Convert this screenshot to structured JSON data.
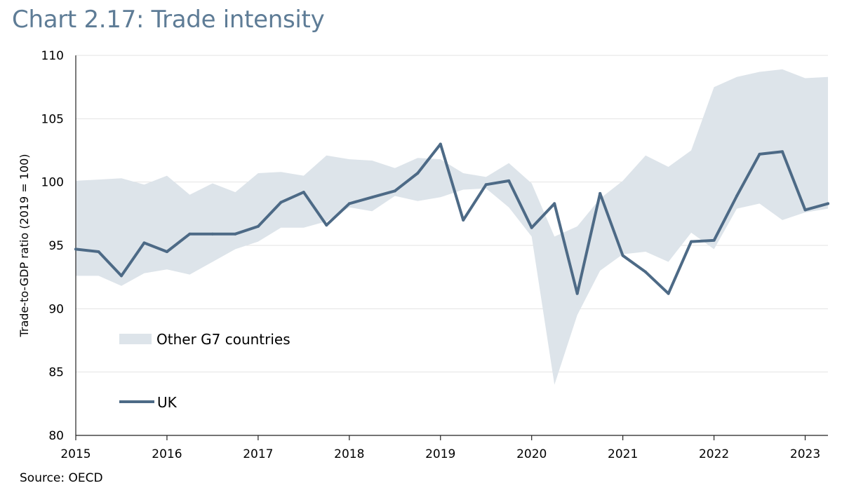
{
  "title": "Chart 2.17: Trade intensity",
  "source": "Source: OECD",
  "colors": {
    "title": "#5e7c96",
    "uk_line": "#4d6a86",
    "band": "#dde4ea",
    "grid": "#e3e3e3",
    "axis": "#222222"
  },
  "chart_data": {
    "type": "line",
    "title": "Chart 2.17: Trade intensity",
    "xlabel": "",
    "ylabel": "Trade-to-GDP ratio (2019 = 100)",
    "xlim": [
      2015.0,
      2023.25
    ],
    "ylim": [
      80,
      110
    ],
    "x_ticks": [
      2015,
      2016,
      2017,
      2018,
      2019,
      2020,
      2021,
      2022,
      2023
    ],
    "y_ticks": [
      80,
      85,
      90,
      95,
      100,
      105,
      110
    ],
    "grid": true,
    "legend": "inside, lower-left",
    "x": [
      2015.0,
      2015.25,
      2015.5,
      2015.75,
      2016.0,
      2016.25,
      2016.5,
      2016.75,
      2017.0,
      2017.25,
      2017.5,
      2017.75,
      2018.0,
      2018.25,
      2018.5,
      2018.75,
      2019.0,
      2019.25,
      2019.5,
      2019.75,
      2020.0,
      2020.25,
      2020.5,
      2020.75,
      2021.0,
      2021.25,
      2021.5,
      2021.75,
      2022.0,
      2022.25,
      2022.5,
      2022.75,
      2023.0,
      2023.25
    ],
    "series": [
      {
        "name": "Other G7 countries",
        "type": "range",
        "upper": [
          100.1,
          100.2,
          100.3,
          99.8,
          100.5,
          99.0,
          99.9,
          99.2,
          100.7,
          100.8,
          100.5,
          102.1,
          101.8,
          101.7,
          101.1,
          101.9,
          101.8,
          100.7,
          100.4,
          101.5,
          99.9,
          95.7,
          96.5,
          98.7,
          100.1,
          102.1,
          101.2,
          102.5,
          107.5,
          108.3,
          108.7,
          108.9,
          108.2,
          108.3
        ],
        "lower": [
          92.6,
          92.6,
          91.8,
          92.8,
          93.1,
          92.7,
          93.7,
          94.7,
          95.3,
          96.4,
          96.4,
          96.9,
          98.0,
          97.7,
          98.9,
          98.5,
          98.8,
          99.4,
          99.5,
          98.0,
          95.7,
          84.0,
          89.5,
          93.0,
          94.3,
          94.5,
          93.7,
          96.0,
          94.7,
          97.9,
          98.3,
          97.0,
          97.6,
          97.9
        ]
      },
      {
        "name": "UK",
        "type": "line",
        "values": [
          94.7,
          94.5,
          92.6,
          95.2,
          94.5,
          95.9,
          95.9,
          95.9,
          96.5,
          98.4,
          99.2,
          96.6,
          98.3,
          98.8,
          99.3,
          100.7,
          103.0,
          97.0,
          99.8,
          100.1,
          96.4,
          98.3,
          91.2,
          99.1,
          94.2,
          92.9,
          91.2,
          95.3,
          95.4,
          98.9,
          102.2,
          102.4,
          97.8,
          98.3
        ]
      }
    ]
  }
}
